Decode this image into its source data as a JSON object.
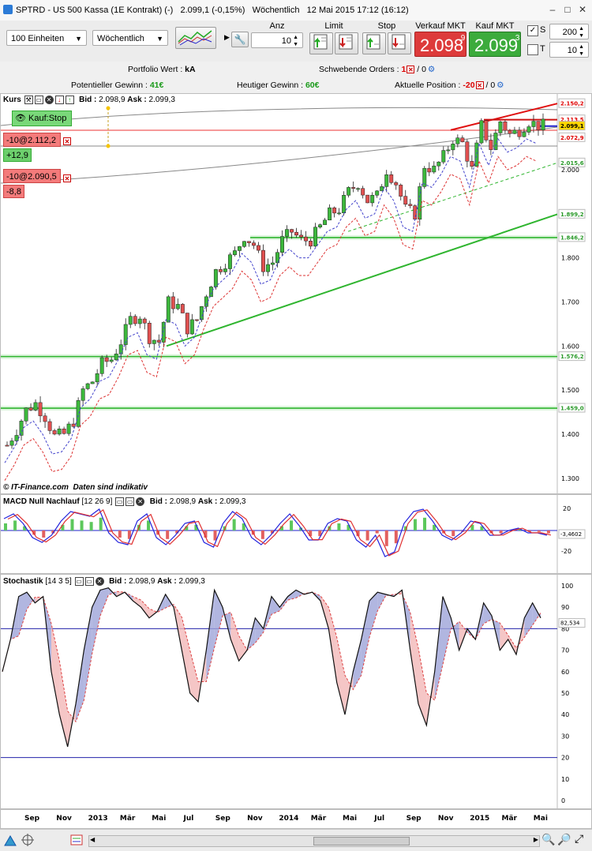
{
  "window": {
    "title": "SPTRD - US 500 Kassa (1E Kontrakt) (-)",
    "price": "2.099,1 (-0,15%)",
    "period": "Wöchentlich",
    "datetime": "12 Mai 2015 17:12 (16:12)"
  },
  "toolbar": {
    "units_select": "100 Einheiten",
    "period_select": "Wöchentlich",
    "anz_label": "Anz",
    "anz_value": "10",
    "limit_label": "Limit",
    "stop_label": "Stop",
    "sell_label": "Verkauf MKT",
    "buy_label": "Kauf MKT",
    "sell_price_main": "2.098",
    "sell_price_frac": ",9",
    "buy_price_main": "2.099",
    "buy_price_frac": ",3",
    "s_label": "S",
    "s_value": "200",
    "t_label": "T",
    "t_value": "10"
  },
  "info": {
    "portfolio_label": "Portfolio Wert : ",
    "portfolio_value": "kA",
    "pending_label": "Schwebende Orders : ",
    "pending_value": "1",
    "pending_sep": " / 0",
    "pot_gain_label": "Potentieller Gewinn : ",
    "pot_gain_value": "41€",
    "today_gain_label": "Heutiger Gewinn : ",
    "today_gain_value": "60€",
    "position_label": "Aktuelle Position : ",
    "position_value": "-20",
    "position_sep": " / 0"
  },
  "price_panel": {
    "name": "Kurs",
    "bid_label": "Bid : ",
    "bid": "2.098,9",
    "ask_label": "Ask : ",
    "ask": "2.099,3",
    "kauf_stop": "Kauf:Stop",
    "order1": "-10@2.112,2",
    "order1_pl": "+12,9",
    "order2": "-10@2.090,5",
    "order2_pl": "-8,8",
    "watermark_brand": "© IT-Finance.com",
    "watermark_note": "Daten sind indikativ",
    "y_ticks": [
      "2.000",
      "1.900",
      "1.800",
      "1.700",
      "1.600",
      "1.500",
      "1.400",
      "1.300"
    ],
    "price_labels": [
      {
        "text": "2.150,2",
        "color": "#e00000"
      },
      {
        "text": "2.113,5",
        "color": "#e00000"
      },
      {
        "text": "2.099,1",
        "color": "#000000",
        "bg": "#ffd700"
      },
      {
        "text": "2.072,9",
        "color": "#e00000"
      },
      {
        "text": "2.015,6",
        "color": "#2a9a2a"
      },
      {
        "text": "1.899,2",
        "color": "#2a9a2a"
      },
      {
        "text": "1.846,2",
        "color": "#2a9a2a"
      },
      {
        "text": "1.576,2",
        "color": "#2a9a2a"
      },
      {
        "text": "1.459,0",
        "color": "#2a9a2a"
      }
    ]
  },
  "macd_panel": {
    "name": "MACD Null Nachlauf",
    "params": "[12 26 9]",
    "bid_label": "Bid : ",
    "bid": "2.098,9",
    "ask_label": "Ask : ",
    "ask": "2.099,3",
    "y_ticks": [
      "20",
      "-20"
    ],
    "value": "-3,4602"
  },
  "stoch_panel": {
    "name": "Stochastik",
    "params": "[14 3 5]",
    "bid_label": "Bid : ",
    "bid": "2.098,9",
    "ask_label": "Ask : ",
    "ask": "2.099,3",
    "y_ticks": [
      "100",
      "90",
      "80",
      "70",
      "60",
      "50",
      "40",
      "30",
      "20",
      "10",
      "0"
    ],
    "value": "82,534"
  },
  "x_axis": [
    "Sep",
    "Nov",
    "2013",
    "Mär",
    "Mai",
    "Jul",
    "Sep",
    "Nov",
    "2014",
    "Mär",
    "Mai",
    "Jul",
    "Sep",
    "Nov",
    "2015",
    "Mär",
    "Mai"
  ],
  "colors": {
    "up_candle": "#3cb83c",
    "down_candle": "#e05050",
    "trend_green": "#2fb52f",
    "trend_red": "#e01010",
    "macd_blue": "#2222dd",
    "macd_red": "#e03030"
  }
}
